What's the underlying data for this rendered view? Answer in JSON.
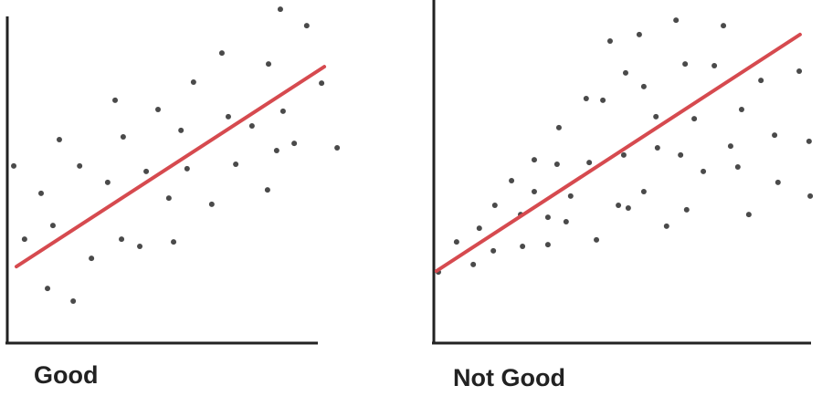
{
  "chart_data": [
    {
      "type": "scatter",
      "title": "Good",
      "color": "#2a2a2a",
      "xlim": [
        0,
        100
      ],
      "ylim": [
        0,
        100
      ],
      "x": [
        1.9,
        5.1,
        10.0,
        13.5,
        15.4,
        11.9,
        19.5,
        21.4,
        24.9,
        29.7,
        31.9,
        34.3,
        33.8,
        39.2,
        41.1,
        44.6,
        47.8,
        49.2,
        51.4,
        53.2,
        55.1,
        60.5,
        63.5,
        65.4,
        67.6,
        72.4,
        77.0,
        77.3,
        79.7,
        80.8,
        81.6,
        84.9,
        88.6,
        93.0,
        97.6
      ],
      "values": [
        51.5,
        30.1,
        43.5,
        34.1,
        59.2,
        15.7,
        12.0,
        51.5,
        24.5,
        46.7,
        70.7,
        60.0,
        30.1,
        28.0,
        49.9,
        68.0,
        42.1,
        29.3,
        61.9,
        50.7,
        76.0,
        40.3,
        84.5,
        65.9,
        52.0,
        63.2,
        44.5,
        81.3,
        56.0,
        97.3,
        67.5,
        58.1,
        92.5,
        75.7,
        56.8
      ],
      "fit_line": {
        "color": "#d64a4f",
        "x": [
          2.7,
          93.8
        ],
        "y": [
          22.1,
          80.5
        ]
      }
    },
    {
      "type": "scatter",
      "title": "Not Good",
      "color": "#2a2a2a",
      "xlim": [
        0,
        100
      ],
      "ylim": [
        0,
        100
      ],
      "x": [
        1.2,
        6.0,
        10.4,
        12.0,
        15.7,
        16.1,
        20.5,
        23.4,
        22.9,
        26.5,
        26.5,
        30.1,
        30.1,
        33.0,
        32.5,
        34.9,
        36.1,
        40.2,
        41.0,
        42.9,
        44.6,
        46.5,
        48.7,
        50.1,
        50.6,
        51.3,
        54.2,
        55.4,
        55.4,
        58.6,
        59.0,
        61.4,
        63.9,
        65.1,
        66.3,
        66.7,
        68.7,
        71.1,
        74.0,
        76.4,
        78.3,
        80.2,
        81.2,
        83.1,
        86.3,
        89.9,
        90.8,
        96.4,
        99.0,
        99.3
      ],
      "values": [
        20.5,
        29.3,
        22.7,
        33.3,
        26.7,
        40.0,
        47.2,
        28.0,
        37.3,
        44.0,
        53.3,
        36.5,
        28.5,
        62.7,
        52.0,
        35.2,
        42.7,
        71.2,
        52.5,
        29.9,
        70.7,
        88.0,
        40.0,
        54.7,
        78.7,
        39.2,
        89.9,
        74.7,
        44.0,
        65.9,
        56.8,
        33.9,
        94.1,
        54.7,
        81.3,
        38.7,
        65.3,
        49.9,
        80.8,
        92.5,
        57.3,
        51.2,
        68.0,
        37.3,
        76.5,
        60.5,
        46.7,
        79.2,
        58.7,
        42.7
      ],
      "fit_line": {
        "color": "#d64a4f",
        "x": [
          0.7,
          96.6
        ],
        "y": [
          20.8,
          89.9
        ]
      }
    }
  ]
}
